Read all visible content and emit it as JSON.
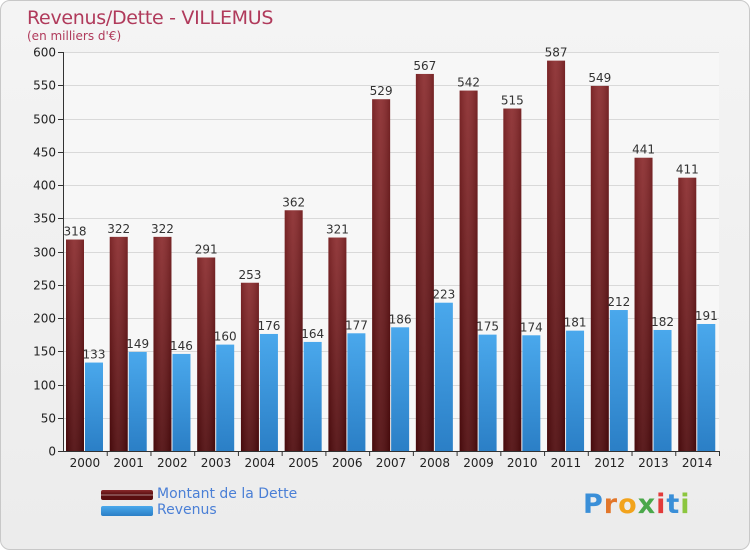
{
  "title": "Revenus/Dette - VILLEMUS",
  "subtitle": "(en milliers d'€)",
  "colors": {
    "dette": "#7a1d1f",
    "revenus": "#3f9be0",
    "title": "#b03a5b"
  },
  "chart_data": {
    "type": "bar",
    "categories": [
      "2000",
      "2001",
      "2002",
      "2003",
      "2004",
      "2005",
      "2006",
      "2007",
      "2008",
      "2009",
      "2010",
      "2011",
      "2012",
      "2013",
      "2014"
    ],
    "series": [
      {
        "name": "Montant de la Dette",
        "values": [
          318,
          322,
          322,
          291,
          253,
          362,
          321,
          529,
          567,
          542,
          515,
          587,
          549,
          441,
          411
        ]
      },
      {
        "name": "Revenus",
        "values": [
          133,
          149,
          146,
          160,
          176,
          164,
          177,
          186,
          223,
          175,
          174,
          181,
          212,
          182,
          191
        ]
      }
    ],
    "ylim": [
      0,
      600
    ],
    "yticks": [
      0,
      50,
      100,
      150,
      200,
      250,
      300,
      350,
      400,
      450,
      500,
      550,
      600
    ],
    "grid": true,
    "legend_position": "bottom-left"
  },
  "legend": {
    "dette_label": "Montant de la Dette",
    "revenus_label": "Revenus"
  },
  "logo": {
    "text": "Proxiti"
  }
}
